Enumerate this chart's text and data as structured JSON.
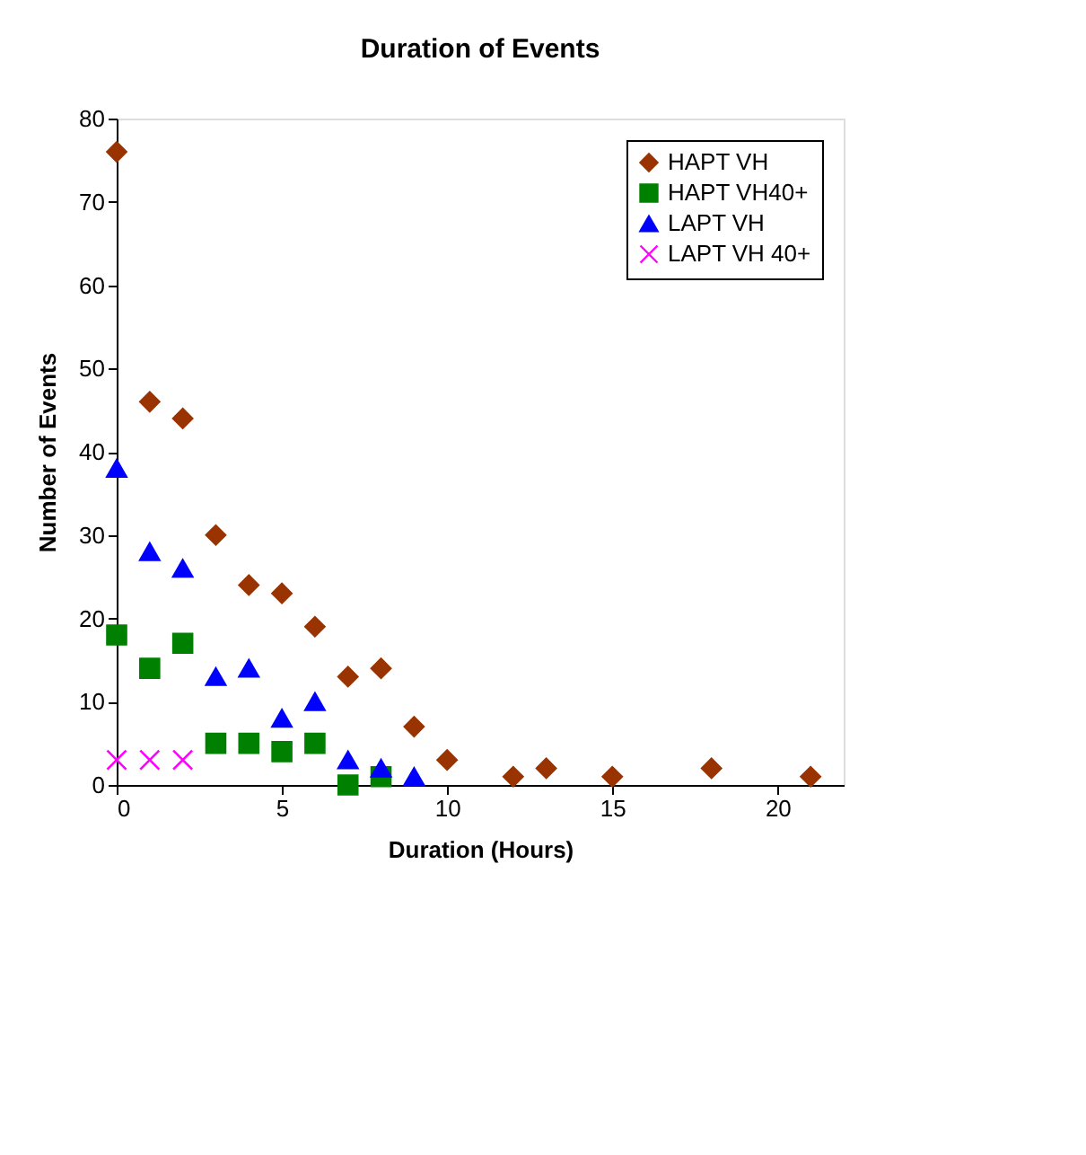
{
  "chart_data": {
    "type": "scatter",
    "title": "Duration of Events",
    "xlabel": "Duration (Hours)",
    "ylabel": "Number of Events",
    "xlim": [
      0,
      22
    ],
    "xticks": [
      0,
      5,
      10,
      15,
      20
    ],
    "ylim": [
      0,
      80
    ],
    "yticks": [
      0,
      10,
      20,
      30,
      40,
      50,
      60,
      70,
      80
    ],
    "grid": false,
    "legend": "top right",
    "series": [
      {
        "name": "HAPT VH",
        "color": "#993300",
        "marker": "diamond",
        "x": [
          0,
          1,
          2,
          3,
          4,
          5,
          6,
          7,
          8,
          9,
          10,
          12,
          13,
          15,
          18,
          21
        ],
        "values": [
          76,
          46,
          44,
          30,
          24,
          23,
          19,
          13,
          14,
          7,
          3,
          1,
          2,
          1,
          2,
          1
        ]
      },
      {
        "name": "HAPT VH40+",
        "color": "#008000",
        "marker": "square",
        "x": [
          0,
          1,
          2,
          3,
          4,
          5,
          6,
          7,
          8
        ],
        "values": [
          18,
          14,
          17,
          5,
          5,
          4,
          5,
          0,
          1
        ]
      },
      {
        "name": "LAPT   VH",
        "color": "#0000ff",
        "marker": "triangle",
        "x": [
          0,
          1,
          2,
          3,
          4,
          5,
          6,
          7,
          8,
          9
        ],
        "values": [
          38,
          28,
          26,
          13,
          14,
          8,
          10,
          3,
          2,
          1
        ]
      },
      {
        "name": "LAPT VH 40+",
        "color": "#ff00ff",
        "marker": "cross",
        "x": [
          0,
          1,
          2
        ],
        "values": [
          3,
          3,
          3
        ]
      }
    ]
  }
}
